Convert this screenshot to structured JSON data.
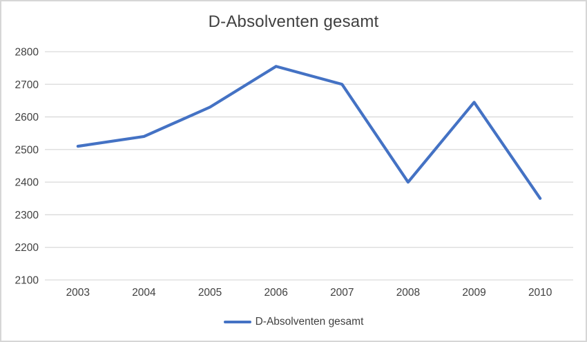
{
  "chart_data": {
    "type": "line",
    "title": "D-Absolventen gesamt",
    "categories": [
      "2003",
      "2004",
      "2005",
      "2006",
      "2007",
      "2008",
      "2009",
      "2010"
    ],
    "series": [
      {
        "name": "D-Absolventen gesamt",
        "values": [
          2510,
          2540,
          2630,
          2755,
          2700,
          2400,
          2645,
          2350
        ]
      }
    ],
    "xlabel": "",
    "ylabel": "",
    "ylim": [
      2100,
      2800
    ],
    "ytick_step": 100,
    "grid": "horizontal-only",
    "legend_position": "bottom"
  },
  "colors": {
    "line": "#4472C4",
    "gridline": "#D9D9D9",
    "text": "#404040",
    "border": "#D6D6D6",
    "background": "#FFFFFF"
  }
}
